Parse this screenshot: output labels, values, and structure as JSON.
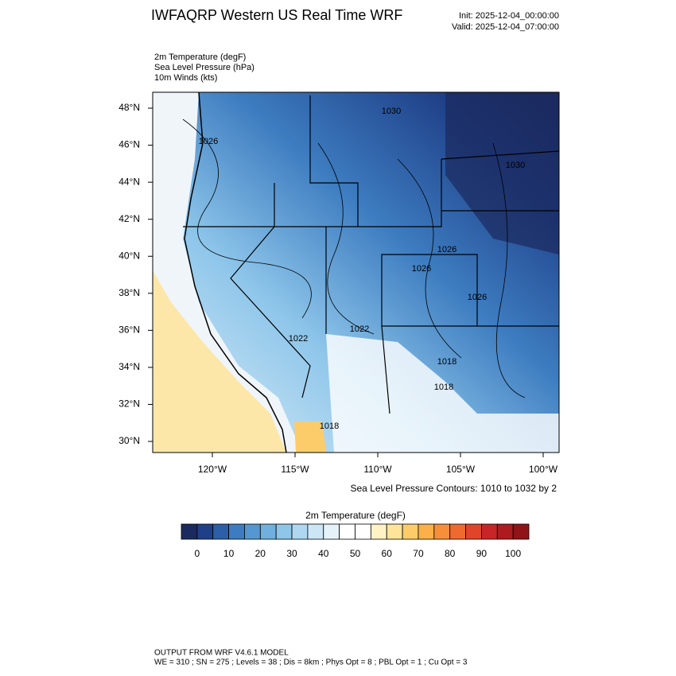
{
  "header": {
    "title": "IWFAQRP Western US Real Time WRF",
    "init": "Init: 2025-12-04_00:00:00",
    "valid": "Valid: 2025-12-04_07:00:00",
    "fields": [
      "2m Temperature   (degF)",
      "Sea Level Pressure   (hPa)",
      "10m Winds   (kts)"
    ]
  },
  "map": {
    "lat_ticks": [
      {
        "value": 48,
        "label": "48°N"
      },
      {
        "value": 46,
        "label": "46°N"
      },
      {
        "value": 44,
        "label": "44°N"
      },
      {
        "value": 42,
        "label": "42°N"
      },
      {
        "value": 40,
        "label": "40°N"
      },
      {
        "value": 38,
        "label": "38°N"
      },
      {
        "value": 36,
        "label": "36°N"
      },
      {
        "value": 34,
        "label": "34°N"
      },
      {
        "value": 32,
        "label": "32°N"
      },
      {
        "value": 30,
        "label": "30°N"
      }
    ],
    "lon_ticks": [
      {
        "value": -120,
        "label": "120°W"
      },
      {
        "value": -115,
        "label": "115°W"
      },
      {
        "value": -110,
        "label": "110°W"
      },
      {
        "value": -105,
        "label": "105°W"
      },
      {
        "value": -100,
        "label": "100°W"
      }
    ],
    "contour_labels": [
      "1018",
      "1026",
      "1026",
      "1030",
      "1030",
      "1026",
      "1026",
      "1022",
      "1022",
      "1018",
      "1018"
    ],
    "contour_note": "Sea Level Pressure Contours: 1010 to 1032 by 2"
  },
  "colorbar": {
    "title": "2m Temperature  (degF)",
    "min": -5,
    "max": 105,
    "colors": [
      "#1b2a5e",
      "#1f4088",
      "#2b5fa8",
      "#3d7cc0",
      "#5597d0",
      "#6fb0de",
      "#8ec6ea",
      "#aed8f1",
      "#cce6f5",
      "#e6f2f9",
      "#ffffff",
      "#ffffff",
      "#fff2c4",
      "#fee39a",
      "#fdcc6a",
      "#fcb04a",
      "#f78f3a",
      "#ef6a2e",
      "#e04528",
      "#c82626",
      "#ad1b1f",
      "#8f1418"
    ],
    "ticks": [
      0,
      10,
      20,
      30,
      40,
      50,
      60,
      70,
      80,
      90,
      100
    ]
  },
  "footer": [
    "OUTPUT FROM WRF V4.6.1 MODEL",
    "WE = 310 ; SN = 275 ; Levels = 38 ; Dis = 8km ; Phys Opt = 8 ; PBL Opt = 1 ; Cu Opt = 3"
  ]
}
